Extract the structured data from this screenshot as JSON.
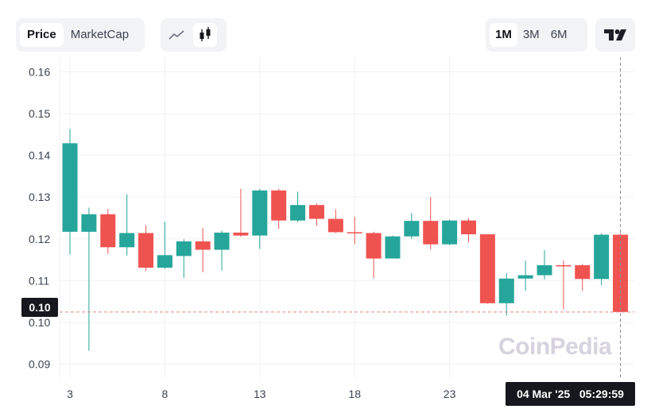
{
  "controls": {
    "price_label": "Price",
    "marketcap_label": "MarketCap",
    "line_icon": "line-chart-icon",
    "candle_icon": "candlestick-icon",
    "ranges": [
      "1M",
      "3M",
      "6M"
    ],
    "active_range": "1M",
    "tradingview_icon": "tradingview-logo-icon"
  },
  "watermark": "CoinPedia",
  "crosshair": {
    "price_label": "0.10",
    "price_value": 0.1025,
    "date": "04 Mar '25",
    "time": "05:29:59"
  },
  "colors": {
    "up": "#26a69a",
    "down": "#ef5350",
    "grid": "#f0f1f3"
  },
  "chart_data": {
    "type": "candlestick",
    "ylim": [
      0.0865,
      0.1635
    ],
    "y_ticks": [
      "0.16",
      "0.15",
      "0.14",
      "0.13",
      "0.12",
      "0.11",
      "0.10",
      "0.09"
    ],
    "x_ticks": [
      {
        "label": "3",
        "day": 3
      },
      {
        "label": "8",
        "day": 8
      },
      {
        "label": "13",
        "day": 13
      },
      {
        "label": "18",
        "day": 18
      },
      {
        "label": "23",
        "day": 23
      }
    ],
    "candles": [
      {
        "day": 3,
        "open": 0.1217,
        "high": 0.1463,
        "low": 0.1163,
        "close": 0.1429
      },
      {
        "day": 4,
        "open": 0.1217,
        "high": 0.1275,
        "low": 0.0932,
        "close": 0.1259
      },
      {
        "day": 5,
        "open": 0.1259,
        "high": 0.1272,
        "low": 0.1164,
        "close": 0.118
      },
      {
        "day": 6,
        "open": 0.118,
        "high": 0.1307,
        "low": 0.116,
        "close": 0.1214
      },
      {
        "day": 7,
        "open": 0.1214,
        "high": 0.1232,
        "low": 0.1123,
        "close": 0.1131
      },
      {
        "day": 8,
        "open": 0.1131,
        "high": 0.1241,
        "low": 0.1128,
        "close": 0.1161
      },
      {
        "day": 9,
        "open": 0.1159,
        "high": 0.1199,
        "low": 0.1106,
        "close": 0.1194
      },
      {
        "day": 10,
        "open": 0.1194,
        "high": 0.1226,
        "low": 0.112,
        "close": 0.1174
      },
      {
        "day": 11,
        "open": 0.1174,
        "high": 0.122,
        "low": 0.1124,
        "close": 0.1215
      },
      {
        "day": 12,
        "open": 0.1215,
        "high": 0.132,
        "low": 0.1205,
        "close": 0.1208
      },
      {
        "day": 13,
        "open": 0.1208,
        "high": 0.132,
        "low": 0.1176,
        "close": 0.1316
      },
      {
        "day": 14,
        "open": 0.1316,
        "high": 0.132,
        "low": 0.1224,
        "close": 0.1244
      },
      {
        "day": 15,
        "open": 0.1244,
        "high": 0.1313,
        "low": 0.124,
        "close": 0.1281
      },
      {
        "day": 16,
        "open": 0.1281,
        "high": 0.1285,
        "low": 0.1231,
        "close": 0.1248
      },
      {
        "day": 17,
        "open": 0.1248,
        "high": 0.1271,
        "low": 0.1214,
        "close": 0.1216
      },
      {
        "day": 18,
        "open": 0.1216,
        "high": 0.1253,
        "low": 0.1187,
        "close": 0.1214
      },
      {
        "day": 19,
        "open": 0.1214,
        "high": 0.1217,
        "low": 0.1106,
        "close": 0.1153
      },
      {
        "day": 20,
        "open": 0.1153,
        "high": 0.1208,
        "low": 0.1153,
        "close": 0.1206
      },
      {
        "day": 21,
        "open": 0.1206,
        "high": 0.1262,
        "low": 0.12,
        "close": 0.1243
      },
      {
        "day": 22,
        "open": 0.1243,
        "high": 0.13,
        "low": 0.1175,
        "close": 0.1187
      },
      {
        "day": 23,
        "open": 0.1187,
        "high": 0.1246,
        "low": 0.1185,
        "close": 0.1244
      },
      {
        "day": 24,
        "open": 0.1244,
        "high": 0.125,
        "low": 0.1192,
        "close": 0.1211
      },
      {
        "day": 25,
        "open": 0.1211,
        "high": 0.1211,
        "low": 0.1045,
        "close": 0.1046
      },
      {
        "day": 26,
        "open": 0.1046,
        "high": 0.1118,
        "low": 0.1016,
        "close": 0.1105
      },
      {
        "day": 27,
        "open": 0.1105,
        "high": 0.1148,
        "low": 0.1076,
        "close": 0.1113
      },
      {
        "day": 28,
        "open": 0.1113,
        "high": 0.1173,
        "low": 0.1103,
        "close": 0.1137
      },
      {
        "day": 29,
        "open": 0.1137,
        "high": 0.1148,
        "low": 0.1032,
        "close": 0.1135
      },
      {
        "day": 30,
        "open": 0.1137,
        "high": 0.114,
        "low": 0.1076,
        "close": 0.1104
      },
      {
        "day": 31,
        "open": 0.1104,
        "high": 0.1213,
        "low": 0.1089,
        "close": 0.121
      },
      {
        "day": 32,
        "open": 0.121,
        "high": 0.1213,
        "low": 0.1025,
        "close": 0.1025
      }
    ]
  }
}
